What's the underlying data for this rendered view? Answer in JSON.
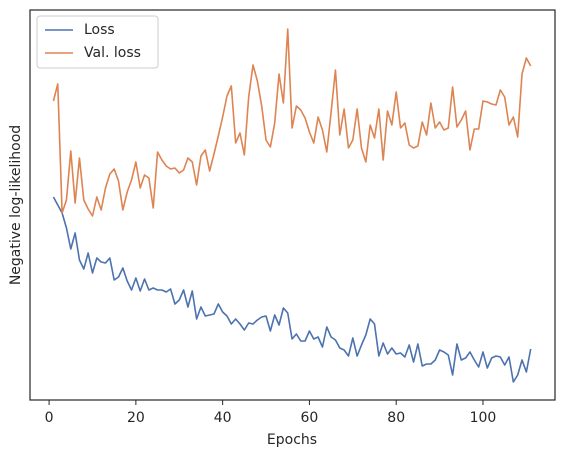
{
  "chart_data": {
    "type": "line",
    "xlabel": "Epochs",
    "ylabel": "Negative log-likelihood",
    "x": [
      1,
      2,
      3,
      4,
      5,
      6,
      7,
      8,
      9,
      10,
      11,
      12,
      13,
      14,
      15,
      16,
      17,
      18,
      19,
      20,
      21,
      22,
      23,
      24,
      25,
      26,
      27,
      28,
      29,
      30,
      31,
      32,
      33,
      34,
      35,
      36,
      37,
      38,
      39,
      40,
      41,
      42,
      43,
      44,
      45,
      46,
      47,
      48,
      49,
      50,
      51,
      52,
      53,
      54,
      55,
      56,
      57,
      58,
      59,
      60,
      61,
      62,
      63,
      64,
      65,
      66,
      67,
      68,
      69,
      70,
      71,
      72,
      73,
      74,
      75,
      76,
      77,
      78,
      79,
      80,
      81,
      82,
      83,
      84,
      85,
      86,
      87,
      88,
      89,
      90,
      91,
      92,
      93,
      94,
      95,
      96,
      97,
      98,
      99,
      100,
      101,
      102,
      103,
      104,
      105,
      106,
      107,
      108,
      109,
      110,
      111
    ],
    "series": [
      {
        "name": "Loss",
        "color": "#4c72b0",
        "values": [
          203,
          195,
          187,
          172,
          151,
          167,
          140,
          131,
          147,
          127,
          142,
          138,
          137,
          142,
          120,
          123,
          132,
          119,
          110,
          122,
          109,
          121,
          110,
          112,
          110,
          110,
          108,
          111,
          96,
          100,
          110,
          93,
          109,
          81,
          93,
          84,
          85,
          86,
          96,
          88,
          84,
          76,
          81,
          76,
          70,
          77,
          76,
          80,
          83,
          84,
          69,
          85,
          75,
          92,
          87,
          61,
          66,
          59,
          59,
          69,
          61,
          63,
          53,
          73,
          63,
          60,
          52,
          50,
          44,
          62,
          44,
          55,
          65,
          81,
          76,
          44,
          57,
          46,
          52,
          46,
          47,
          43,
          55,
          38,
          56,
          34,
          36,
          36,
          40,
          50,
          48,
          45,
          25,
          56,
          40,
          42,
          48,
          40,
          33,
          48,
          32,
          42,
          44,
          43,
          35,
          43,
          18,
          25,
          40,
          28,
          51
        ]
      },
      {
        "name": "Val. loss",
        "color": "#dd8452",
        "values": [
          299,
          316,
          187,
          200,
          249,
          197,
          242,
          200,
          191,
          184,
          203,
          190,
          212,
          226,
          231,
          219,
          190,
          208,
          220,
          238,
          212,
          225,
          222,
          192,
          248,
          240,
          234,
          231,
          232,
          227,
          230,
          242,
          238,
          215,
          244,
          250,
          229,
          246,
          264,
          283,
          304,
          314,
          257,
          267,
          245,
          303,
          335,
          319,
          294,
          260,
          253,
          277,
          326,
          297,
          371,
          272,
          294,
          290,
          282,
          268,
          257,
          283,
          270,
          248,
          288,
          330,
          265,
          291,
          252,
          260,
          291,
          252,
          238,
          275,
          262,
          291,
          240,
          289,
          275,
          308,
          272,
          277,
          255,
          252,
          254,
          278,
          265,
          297,
          272,
          278,
          270,
          272,
          313,
          273,
          280,
          289,
          250,
          271,
          271,
          299,
          298,
          296,
          295,
          310,
          303,
          275,
          283,
          263,
          326,
          342,
          334
        ]
      }
    ],
    "xlim": [
      -4.4,
      116.6
    ],
    "xticks": [
      0,
      20,
      40,
      60,
      80,
      100
    ],
    "ylim": [
      0,
      390
    ],
    "legend": "upper left",
    "grid": false
  }
}
